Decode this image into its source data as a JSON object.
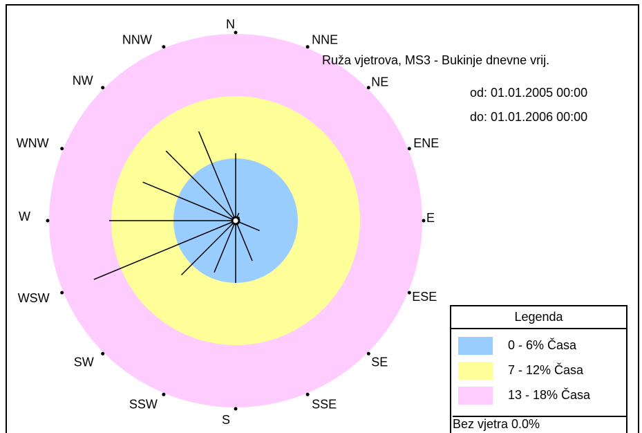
{
  "chart_data": {
    "type": "wind-rose",
    "title": "Ruža vjetrova, MS3 - Bukinje dnevne vrij.",
    "from_label": "od: 01.01.2005 00:00",
    "to_label": "do: 01.01.2006 00:00",
    "directions": [
      "N",
      "NNE",
      "NE",
      "ENE",
      "E",
      "ESE",
      "SE",
      "SSE",
      "S",
      "SSW",
      "SW",
      "WSW",
      "W",
      "WNW",
      "NW",
      "NNW"
    ],
    "values_percent": [
      6.5,
      0.8,
      0.5,
      0.3,
      0.3,
      2.5,
      0.4,
      4.2,
      6.0,
      5.4,
      7.4,
      14.8,
      12.2,
      9.7,
      9.5,
      9.3
    ],
    "rings": [
      {
        "max": 6,
        "color": "#99ccff"
      },
      {
        "max": 12,
        "color": "#ffff99"
      },
      {
        "max": 18,
        "color": "#ffccff"
      }
    ],
    "legend": {
      "title": "Legenda",
      "entries": [
        {
          "label": "0 - 6% Časa",
          "color": "#99ccff"
        },
        {
          "label": "7 - 12% Časa",
          "color": "#ffff99"
        },
        {
          "label": "13 - 18% Časa",
          "color": "#ffccff"
        }
      ],
      "calm": "Bez vjetra 0.0%"
    }
  }
}
